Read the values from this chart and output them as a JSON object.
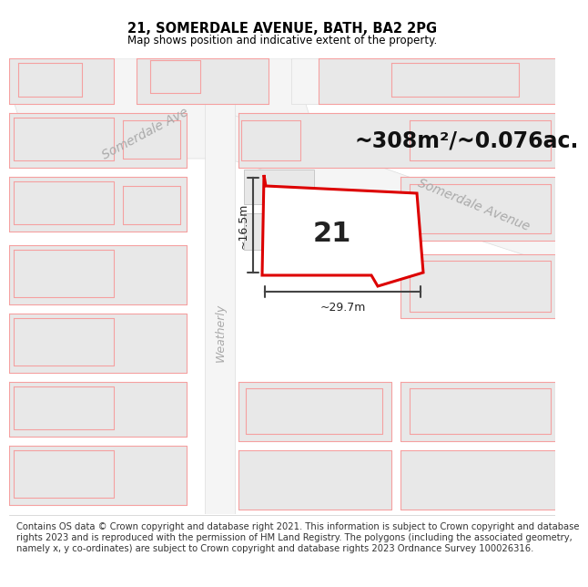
{
  "title_line1": "21, SOMERDALE AVENUE, BATH, BA2 2PG",
  "title_line2": "Map shows position and indicative extent of the property.",
  "area_text": "~308m²/~0.076ac.",
  "label_21": "21",
  "width_label": "~29.7m",
  "height_label": "~16.5m",
  "street_label_top": "Somerdale Ave",
  "street_label_right": "Somerdale Avenue",
  "street_label_left": "Weatherly",
  "footer_text": "Contains OS data © Crown copyright and database right 2021. This information is subject to Crown copyright and database rights 2023 and is reproduced with the permission of HM Land Registry. The polygons (including the associated geometry, namely x, y co-ordinates) are subject to Crown copyright and database rights 2023 Ordnance Survey 100026316.",
  "bg_color": "#ffffff",
  "map_bg": "#f8f8f8",
  "road_color": "#ffffff",
  "plot_line_color": "#dd0000",
  "building_fill": "#e8e8e8",
  "building_edge": "#cccccc",
  "pink_line_color": "#f5a0a0",
  "street_color": "#bbbbbb",
  "footer_fontsize": 7.2,
  "title_fontsize": 10.5,
  "subtitle_fontsize": 8.5,
  "area_fontsize": 17,
  "label_fontsize": 22
}
